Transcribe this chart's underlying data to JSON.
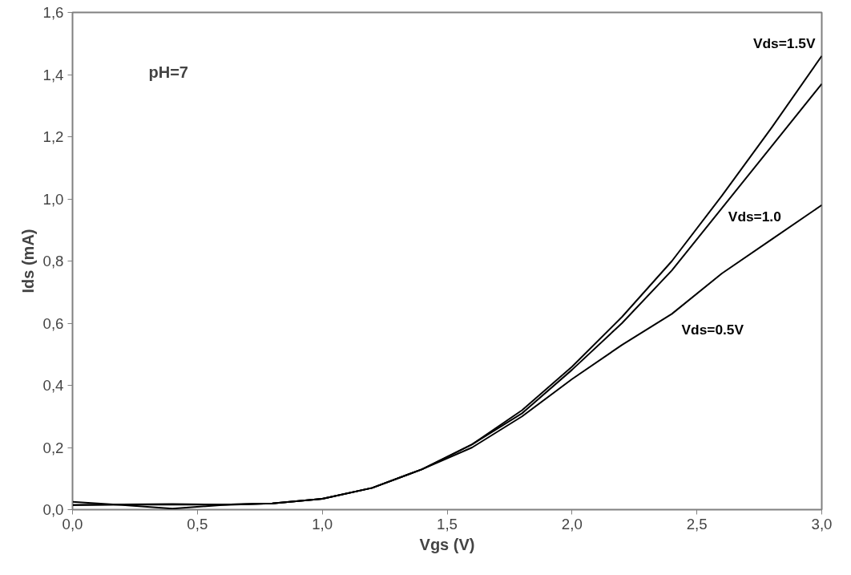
{
  "chart_data": {
    "type": "line",
    "xlabel": "Vgs (V)",
    "ylabel": "Ids (mA)",
    "annotations": [
      "pH=7"
    ],
    "xlim": [
      0,
      3
    ],
    "ylim": [
      0,
      1.6
    ],
    "xticks": [
      {
        "value": 0,
        "label": "0,0"
      },
      {
        "value": 0.5,
        "label": "0,5"
      },
      {
        "value": 1,
        "label": "1,0"
      },
      {
        "value": 1.5,
        "label": "1,5"
      },
      {
        "value": 2,
        "label": "2,0"
      },
      {
        "value": 2.5,
        "label": "2,5"
      },
      {
        "value": 3,
        "label": "3,0"
      }
    ],
    "yticks": [
      {
        "value": 0,
        "label": "0,0"
      },
      {
        "value": 0.2,
        "label": "0,2"
      },
      {
        "value": 0.4,
        "label": "0,4"
      },
      {
        "value": 0.6,
        "label": "0,6"
      },
      {
        "value": 0.8,
        "label": "0,8"
      },
      {
        "value": 1.0,
        "label": "1,0"
      },
      {
        "value": 1.2,
        "label": "1,2"
      },
      {
        "value": 1.4,
        "label": "1,4"
      },
      {
        "value": 1.6,
        "label": "1,6"
      }
    ],
    "x": [
      0,
      0.2,
      0.4,
      0.6,
      0.8,
      1.0,
      1.2,
      1.4,
      1.6,
      1.8,
      2.0,
      2.2,
      2.4,
      2.6,
      2.8,
      3.0
    ],
    "grid": false,
    "legend": false,
    "marker": "none",
    "line_style": "solid",
    "series": [
      {
        "name": "Vds=1.5V",
        "color": "#000000",
        "values": [
          0.025,
          0.015,
          0.003,
          0.015,
          0.02,
          0.035,
          0.07,
          0.13,
          0.21,
          0.32,
          0.46,
          0.62,
          0.8,
          1.01,
          1.23,
          1.46
        ]
      },
      {
        "name": "Vds=1.0",
        "color": "#000000",
        "values": [
          0.015,
          0.017,
          0.018,
          0.016,
          0.02,
          0.035,
          0.07,
          0.13,
          0.21,
          0.31,
          0.45,
          0.6,
          0.77,
          0.97,
          1.17,
          1.37
        ]
      },
      {
        "name": "Vds=0.5V",
        "color": "#000000",
        "values": [
          0.015,
          0.016,
          0.016,
          0.016,
          0.02,
          0.035,
          0.07,
          0.13,
          0.2,
          0.3,
          0.42,
          0.53,
          0.63,
          0.76,
          0.87,
          0.98
        ]
      }
    ]
  }
}
